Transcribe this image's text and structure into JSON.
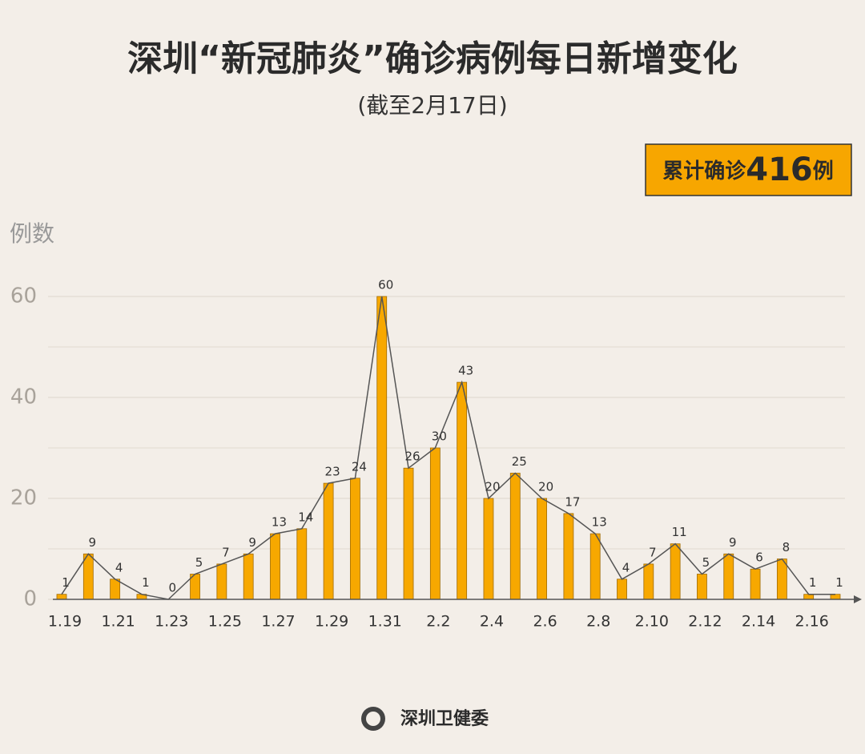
{
  "chart_data": {
    "type": "bar",
    "title": "深圳“新冠肺炎”确诊病例每日新增变化",
    "subtitle": "(截至2月17日)",
    "total_prefix": "累计确诊",
    "total": 416,
    "total_suffix": "例",
    "y_label": "例数",
    "source": "深圳卫健委",
    "categories": [
      "1.19",
      null,
      "1.21",
      null,
      "1.23",
      null,
      "1.25",
      null,
      "1.27",
      null,
      "1.29",
      null,
      "1.31",
      null,
      "2.2",
      null,
      "2.4",
      null,
      "2.6",
      null,
      "2.8",
      null,
      "2.10",
      null,
      "2.12",
      null,
      "2.14",
      null,
      "2.16",
      null
    ],
    "values": [
      1,
      9,
      4,
      1,
      0,
      5,
      7,
      9,
      13,
      14,
      23,
      24,
      60,
      26,
      30,
      43,
      20,
      25,
      20,
      17,
      13,
      4,
      7,
      11,
      5,
      9,
      6,
      8,
      1,
      1
    ],
    "color": "#f7a800",
    "line_color": "#555555",
    "ylim": [
      0,
      64
    ],
    "yticks": [
      0,
      20,
      40,
      60
    ],
    "minor_yticks": [
      10,
      30,
      50
    ],
    "grid": true
  }
}
